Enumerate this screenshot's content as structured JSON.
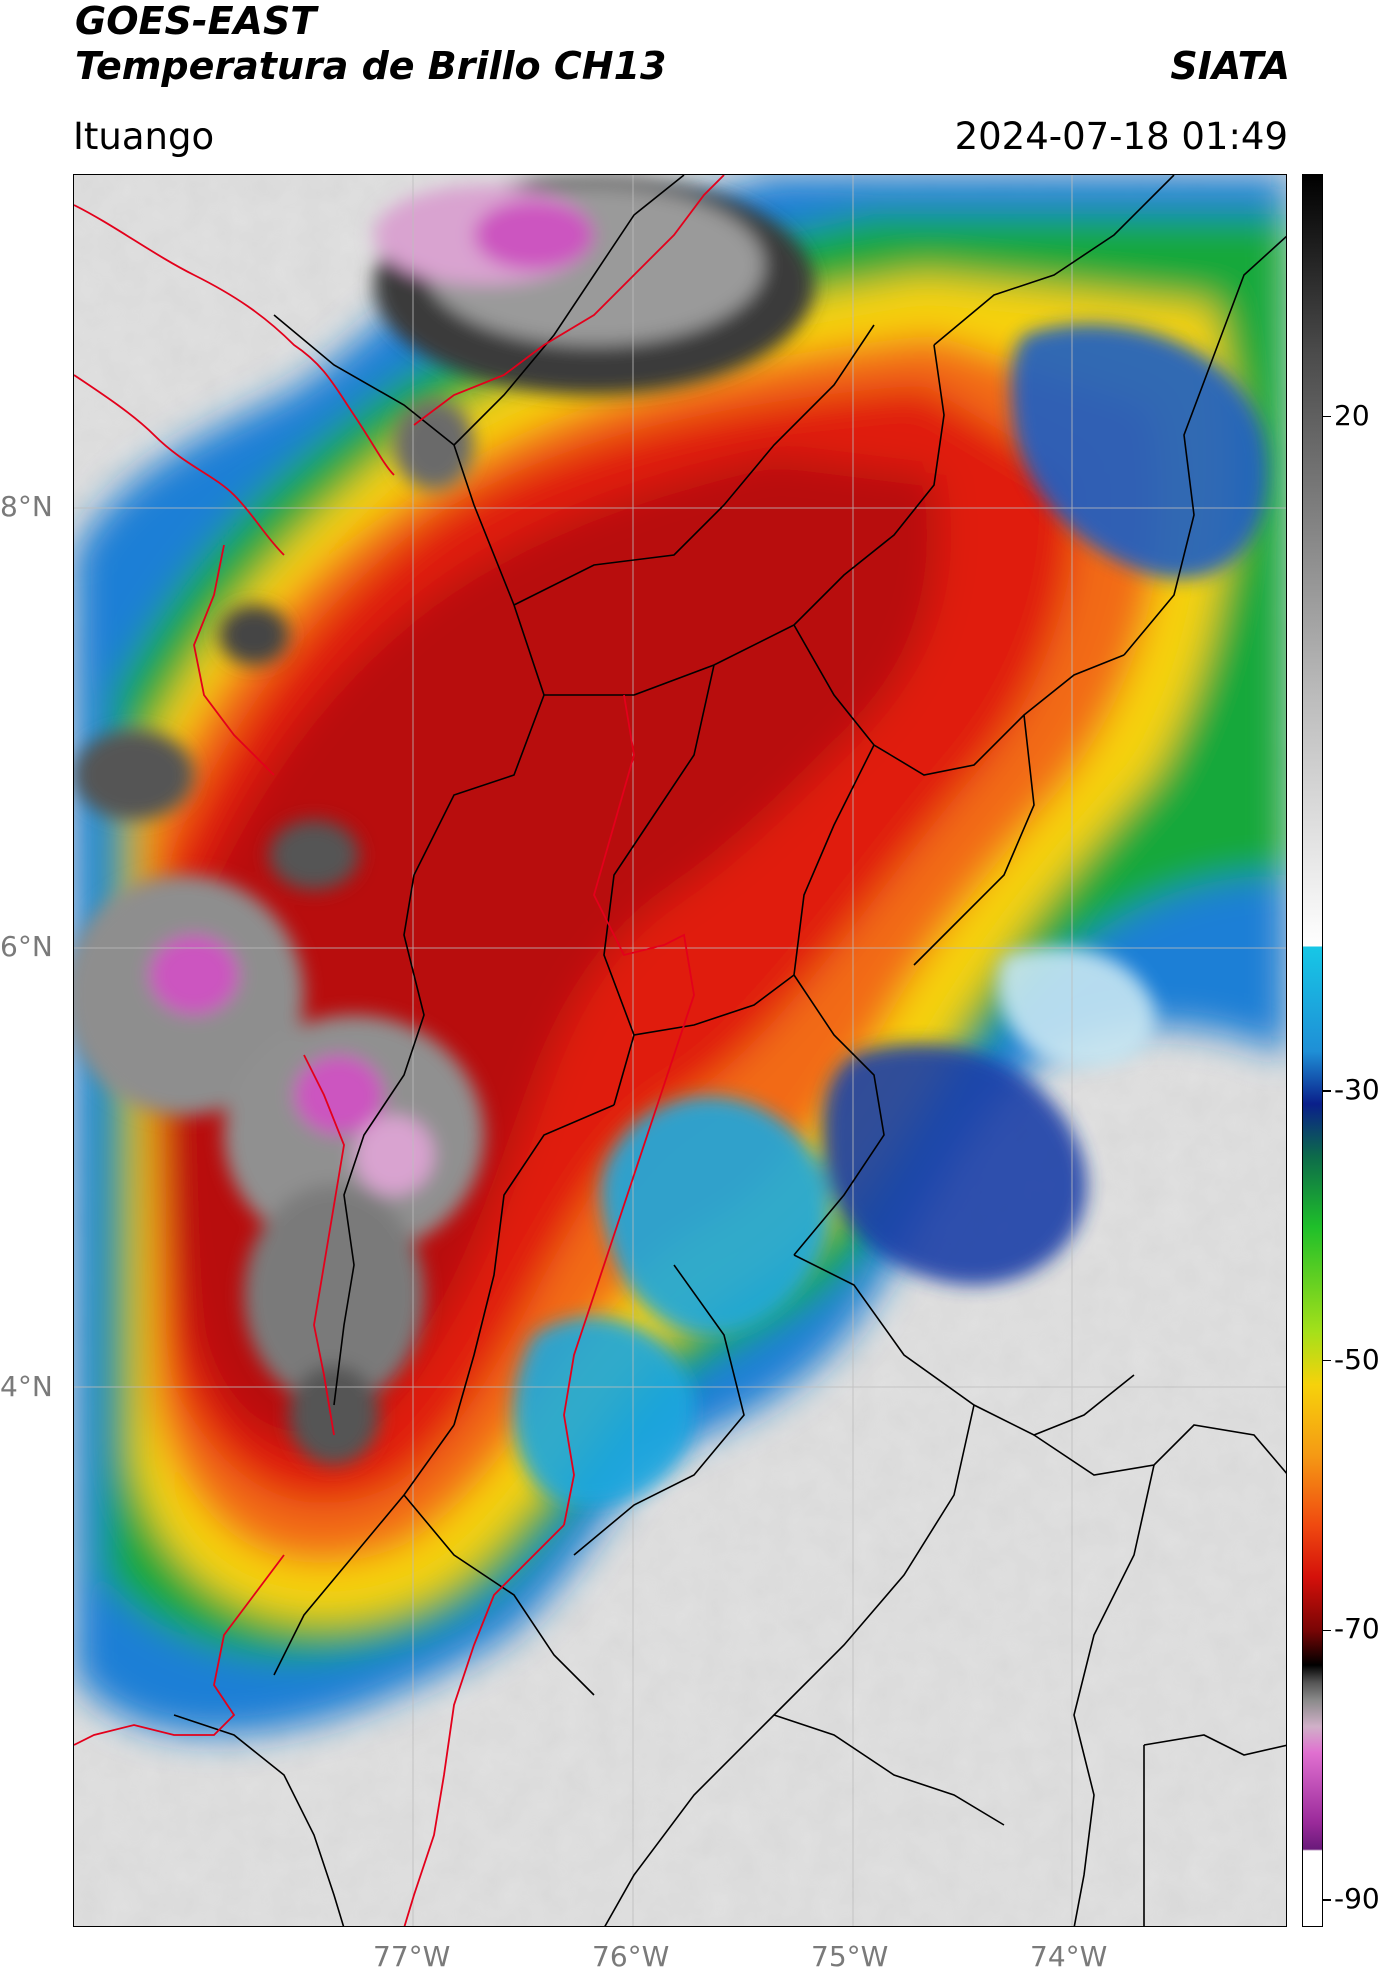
{
  "header": {
    "satellite": "GOES-EAST",
    "product": "Temperatura de Brillo CH13",
    "org": "SIATA",
    "region": "Ituango",
    "datetime": "2024-07-18 01:49"
  },
  "map": {
    "lat_ticks": [
      "8°N",
      "6°N",
      "4°N"
    ],
    "lon_ticks": [
      "77°W",
      "76°W",
      "75°W",
      "74°W"
    ],
    "lon_range": [
      -78.55,
      -72.95
    ],
    "lat_range": [
      1.95,
      9.55
    ],
    "border_color": "#e3001b",
    "division_color": "#000000",
    "grid_color": "#bdbdbd"
  },
  "colorbar": {
    "labels": [
      "20",
      "-30",
      "-50",
      "-70",
      "-90"
    ],
    "label_values": [
      20,
      -30,
      -50,
      -70,
      -90
    ],
    "range": [
      -92,
      38
    ]
  }
}
